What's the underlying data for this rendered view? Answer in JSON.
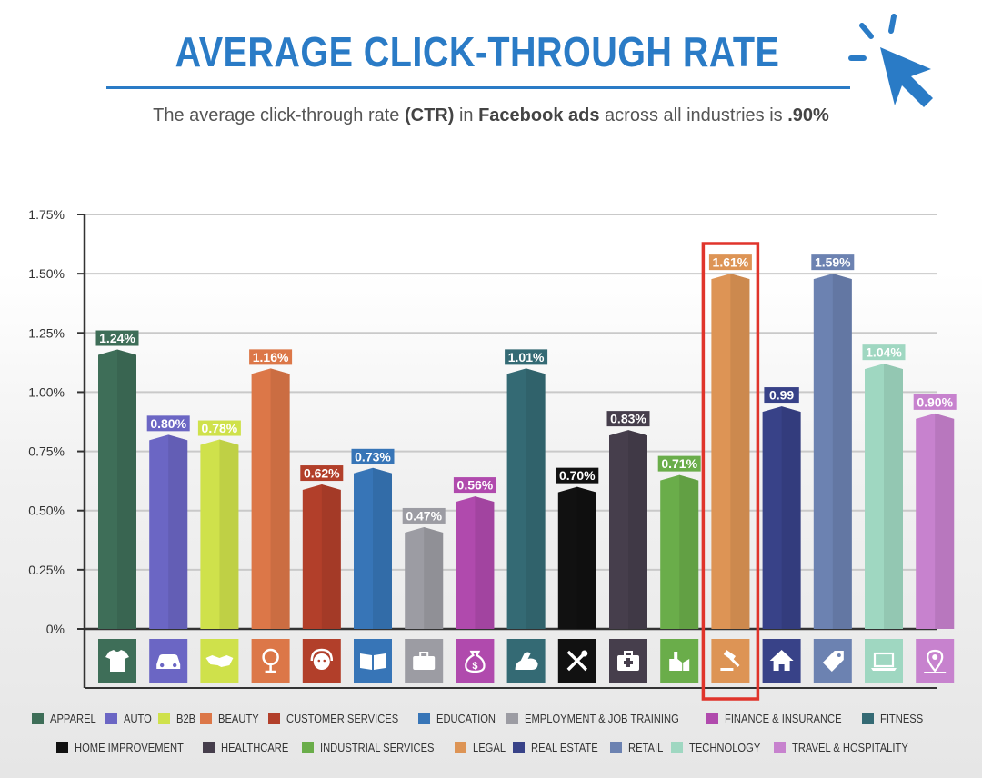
{
  "header": {
    "title": "AVERAGE CLICK-THROUGH RATE",
    "subtitle_parts": [
      {
        "text": "The average click-through rate ",
        "bold": false
      },
      {
        "text": "(CTR)",
        "bold": true
      },
      {
        "text": " in ",
        "bold": false
      },
      {
        "text": "Facebook ads",
        "bold": true
      },
      {
        "text": " across all industries is ",
        "bold": false
      },
      {
        "text": ".90%",
        "bold": true
      }
    ],
    "accent_color": "#2a7bc6"
  },
  "chart_data": {
    "type": "bar",
    "title": "AVERAGE CLICK-THROUGH RATE",
    "ylim": [
      0,
      1.75
    ],
    "y_ticks": [
      "0%",
      "0.25%",
      "0.50%",
      "0.75%",
      "1.00%",
      "1.25%",
      "1.50%",
      "1.75%"
    ],
    "y_tick_values": [
      0,
      0.25,
      0.5,
      0.75,
      1.0,
      1.25,
      1.5,
      1.75
    ],
    "grid": true,
    "legend_position": "bottom",
    "highlighted_category": "LEGAL",
    "highlight_color": "#e0342b",
    "categories": [
      "APPAREL",
      "AUTO",
      "B2B",
      "BEAUTY",
      "CUSTOMER SERVICES",
      "EDUCATION",
      "EMPLOYMENT & JOB TRAINING",
      "FINANCE & INSURANCE",
      "FITNESS",
      "HOME IMPROVEMENT",
      "HEALTHCARE",
      "INDUSTRIAL SERVICES",
      "LEGAL",
      "REAL ESTATE",
      "RETAIL",
      "TECHNOLOGY",
      "TRAVEL & HOSPITALITY"
    ],
    "values": [
      1.24,
      0.8,
      0.78,
      1.16,
      0.62,
      0.73,
      0.47,
      0.56,
      1.01,
      0.7,
      0.83,
      0.71,
      1.61,
      0.99,
      1.59,
      1.04,
      0.9
    ],
    "drawn_heights": [
      1.18,
      0.82,
      0.8,
      1.1,
      0.61,
      0.68,
      0.43,
      0.56,
      1.1,
      0.6,
      0.84,
      0.65,
      1.5,
      0.94,
      1.5,
      1.12,
      0.91
    ],
    "value_labels": [
      "1.24%",
      "0.80%",
      "0.78%",
      "1.16%",
      "0.62%",
      "0.73%",
      "0.47%",
      "0.56%",
      "1.01%",
      "0.70%",
      "0.83%",
      "0.71%",
      "1.61%",
      "0.99",
      "1.59%",
      "1.04%",
      "0.90%"
    ],
    "colors": [
      "#3e6e58",
      "#6b66c4",
      "#cfe14b",
      "#dc7748",
      "#b23f2a",
      "#3775b7",
      "#9c9ca3",
      "#b04aad",
      "#346a74",
      "#111111",
      "#463e4c",
      "#6aad4a",
      "#dd9455",
      "#384288",
      "#6c82b1",
      "#9fd7c1",
      "#c782ce"
    ],
    "icons": [
      "tshirt-icon",
      "car-icon",
      "handshake-icon",
      "mirror-icon",
      "headset-icon",
      "book-icon",
      "briefcase-icon",
      "money-bag-icon",
      "flexed-arm-icon",
      "tools-icon",
      "medical-kit-icon",
      "factory-icon",
      "gavel-icon",
      "house-icon",
      "price-tag-icon",
      "laptop-icon",
      "map-pin-icon"
    ]
  }
}
